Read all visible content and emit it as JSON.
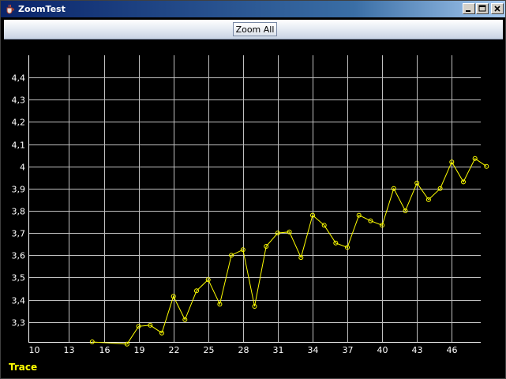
{
  "window": {
    "title": "ZoomTest"
  },
  "toolbar": {
    "zoom_all_label": "Zoom All"
  },
  "colors": {
    "background": "#000000",
    "grid": "#c0c0c0",
    "trace": "#ffff00",
    "text": "#ffffff"
  },
  "chart_data": {
    "type": "line",
    "title": "",
    "xlabel": "",
    "ylabel": "",
    "xlim": [
      9.5,
      48.5
    ],
    "ylim": [
      3.21,
      4.5
    ],
    "grid": true,
    "legend": "bottom-left",
    "x_ticks": [
      "10",
      "13",
      "16",
      "19",
      "22",
      "25",
      "28",
      "31",
      "34",
      "37",
      "40",
      "43",
      "46"
    ],
    "y_ticks": [
      "3,3",
      "3,4",
      "3,5",
      "3,6",
      "3,7",
      "3,8",
      "3,9",
      "4",
      "4,1",
      "4,2",
      "4,3",
      "4,4"
    ],
    "series": [
      {
        "name": "Trace",
        "x": [
          15,
          18,
          19,
          20,
          21,
          22,
          23,
          24,
          25,
          26,
          27,
          28,
          29,
          30,
          31,
          32,
          33,
          34,
          35,
          36,
          37,
          38,
          39,
          40,
          41,
          42,
          43,
          44,
          45,
          46,
          47,
          48,
          49
        ],
        "y": [
          3.21,
          3.2,
          3.28,
          3.285,
          3.25,
          3.415,
          3.31,
          3.44,
          3.49,
          3.38,
          3.6,
          3.625,
          3.37,
          3.64,
          3.7,
          3.705,
          3.59,
          3.78,
          3.735,
          3.655,
          3.635,
          3.78,
          3.755,
          3.735,
          3.9,
          3.8,
          3.925,
          3.85,
          3.9,
          4.02,
          3.93,
          4.035,
          4.0
        ]
      }
    ]
  }
}
